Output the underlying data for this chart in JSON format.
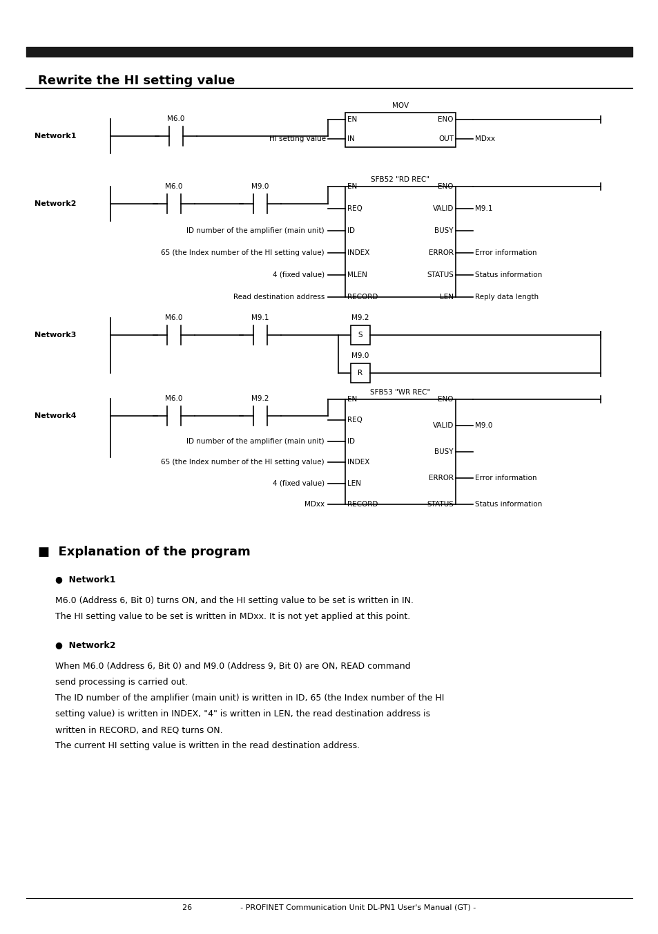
{
  "bg_color": "#ffffff",
  "section_header": "Rewrite the HI setting value",
  "footer": "26                    - PROFINET Communication Unit DL-PN1 User's Manual (GT) -",
  "explanation_title": "■  Explanation of the program",
  "explanation_sections": [
    {
      "heading": "●  Network1",
      "lines": [
        "M6.0 (Address 6, Bit 0) turns ON, and the HI setting value to be set is written in IN.",
        "The HI setting value to be set is written in MDxx. It is not yet applied at this point."
      ]
    },
    {
      "heading": "●  Network2",
      "lines": [
        "When M6.0 (Address 6, Bit 0) and M9.0 (Address 9, Bit 0) are ON, READ command",
        "send processing is carried out.",
        "The ID number of the amplifier (main unit) is written in ID, 65 (the Index number of the HI",
        "setting value) is written in INDEX, \"4\" is written in LEN, the read destination address is",
        "written in RECORD, and REQ turns ON.",
        "The current HI setting value is written in the read destination address."
      ]
    }
  ]
}
